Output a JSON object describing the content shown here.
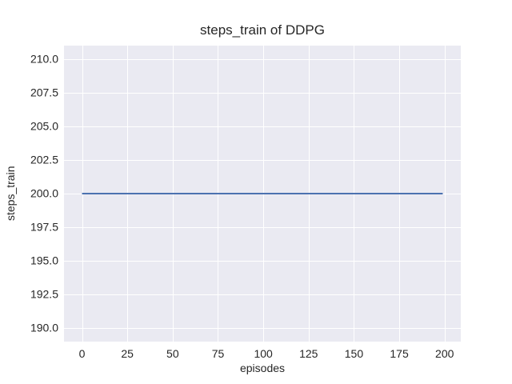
{
  "chart_data": {
    "type": "line",
    "title": "steps_train of DDPG",
    "xlabel": "episodes",
    "ylabel": "steps_train",
    "xlim": [
      -9.95,
      208.95
    ],
    "ylim": [
      189,
      211
    ],
    "xticks": [
      0,
      25,
      50,
      75,
      100,
      125,
      150,
      175,
      200
    ],
    "xtick_labels": [
      "0",
      "25",
      "50",
      "75",
      "100",
      "125",
      "150",
      "175",
      "200"
    ],
    "yticks": [
      190,
      192.5,
      195,
      197.5,
      200,
      202.5,
      205,
      207.5,
      210
    ],
    "ytick_labels": [
      "190.0",
      "192.5",
      "195.0",
      "197.5",
      "200.0",
      "202.5",
      "205.0",
      "207.5",
      "210.0"
    ],
    "grid": true,
    "legend": false,
    "series": [
      {
        "name": "steps_train",
        "color": "#4c72b0",
        "x": [
          0,
          199
        ],
        "y": [
          200,
          200
        ]
      }
    ],
    "colors": {
      "figure_bg": "#ffffff",
      "plot_bg": "#eaeaf2",
      "grid": "#ffffff",
      "text": "#262626"
    }
  }
}
